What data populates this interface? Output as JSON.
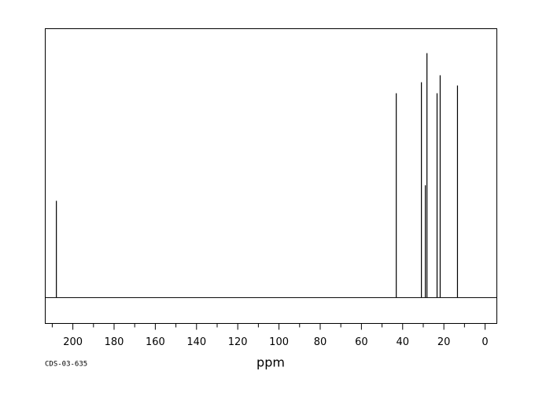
{
  "chart_data": {
    "type": "spectrum",
    "x_label": "ppm",
    "note": "CDS-03-635",
    "x": [
      208.0,
      43.1,
      30.9,
      29.0,
      28.2,
      23.3,
      21.8,
      13.4
    ],
    "values": [
      36.0,
      76.0,
      80.1,
      41.8,
      90.9,
      76.0,
      82.7,
      78.9
    ],
    "color": "#000000",
    "xlim": [
      213.4,
      -5.7
    ],
    "ylim": [
      -9.6,
      100
    ],
    "xticks": [
      200,
      180,
      160,
      140,
      120,
      100,
      80,
      60,
      40,
      20,
      0
    ],
    "xminor_ticks": [
      210,
      190,
      170,
      150,
      130,
      110,
      90,
      70,
      50,
      30,
      10
    ]
  }
}
